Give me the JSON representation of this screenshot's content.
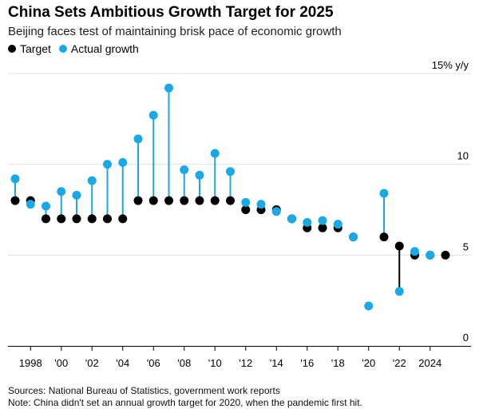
{
  "title": "China Sets Ambitious Growth Target for 2025",
  "subtitle": "Beijing faces test of maintaining brisk pace of economic growth",
  "legend": {
    "target": "Target",
    "actual": "Actual growth"
  },
  "colors": {
    "target": "#000000",
    "actual": "#1aa8e6",
    "gridline": "#e0e0e0",
    "axis": "#000000"
  },
  "footer": {
    "sources": "Sources: National Bureau of Statistics, government work reports",
    "note": "Note: China didn't set an annual growth target for 2020, when the pandemic first hit."
  },
  "chart_data": {
    "type": "dot-plot",
    "title": "China Sets Ambitious Growth Target for 2025",
    "xlabel": "",
    "ylabel": "15% y/y",
    "y_unit_label": "15% y/y",
    "ylim": [
      0,
      15
    ],
    "yticks": [
      0,
      5,
      10,
      15
    ],
    "ytick_labels": [
      "0",
      "5",
      "10",
      "15% y/y"
    ],
    "xlim": [
      1996.9,
      2026.1
    ],
    "xticks": [
      1998,
      2000,
      2002,
      2004,
      2006,
      2008,
      2010,
      2012,
      2014,
      2016,
      2018,
      2020,
      2022,
      2024
    ],
    "xtick_labels": [
      "1998",
      "'00",
      "'02",
      "'04",
      "'06",
      "'08",
      "'10",
      "'12",
      "'14",
      "'16",
      "'18",
      "'20",
      "'22",
      "2024"
    ],
    "years": [
      1997,
      1998,
      1999,
      2000,
      2001,
      2002,
      2003,
      2004,
      2005,
      2006,
      2007,
      2008,
      2009,
      2010,
      2011,
      2012,
      2013,
      2014,
      2015,
      2016,
      2017,
      2018,
      2019,
      2020,
      2021,
      2022,
      2023,
      2024,
      2025
    ],
    "series": [
      {
        "name": "Target",
        "values": [
          8,
          8,
          7,
          7,
          7,
          7,
          7,
          7,
          8,
          8,
          8,
          8,
          8,
          8,
          8,
          7.5,
          7.5,
          7.5,
          7,
          6.5,
          6.5,
          6.5,
          6,
          null,
          6,
          5.5,
          5,
          5,
          5
        ]
      },
      {
        "name": "Actual growth",
        "values": [
          9.2,
          7.8,
          7.7,
          8.5,
          8.3,
          9.1,
          10.0,
          10.1,
          11.4,
          12.7,
          14.2,
          9.7,
          9.4,
          10.6,
          9.6,
          7.9,
          7.8,
          7.4,
          7.0,
          6.8,
          6.9,
          6.7,
          6.0,
          2.2,
          8.4,
          3.0,
          5.2,
          5.0,
          null
        ]
      }
    ]
  }
}
